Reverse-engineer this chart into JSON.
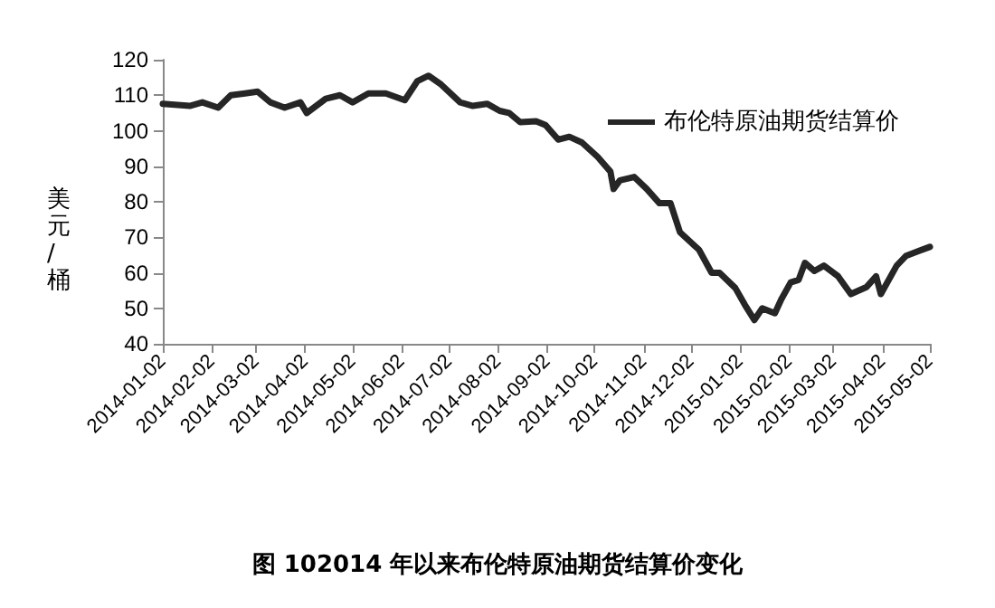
{
  "chart_data": {
    "type": "line",
    "title": "图 102014 年以来布伦特原油期货结算价变化",
    "ylabel": "美元/桶",
    "x": [
      "2014-01-02",
      "2014-01-19",
      "2014-01-27",
      "2014-02-06",
      "2014-02-14",
      "2014-02-23",
      "2014-03-03",
      "2014-03-11",
      "2014-03-20",
      "2014-03-30",
      "2014-04-03",
      "2014-04-15",
      "2014-04-24",
      "2014-05-02",
      "2014-05-12",
      "2014-05-23",
      "2014-06-04",
      "2014-06-12",
      "2014-06-19",
      "2014-06-27",
      "2014-07-09",
      "2014-07-17",
      "2014-07-26",
      "2014-08-03",
      "2014-08-09",
      "2014-08-16",
      "2014-08-26",
      "2014-09-01",
      "2014-09-09",
      "2014-09-16",
      "2014-09-24",
      "2014-10-04",
      "2014-10-12",
      "2014-10-14",
      "2014-10-18",
      "2014-10-27",
      "2014-11-04",
      "2014-11-12",
      "2014-11-19",
      "2014-11-25",
      "2014-12-07",
      "2014-12-15",
      "2014-12-20",
      "2014-12-30",
      "2015-01-05",
      "2015-01-11",
      "2015-01-16",
      "2015-01-24",
      "2015-01-28",
      "2015-02-03",
      "2015-02-08",
      "2015-02-12",
      "2015-02-18",
      "2015-02-24",
      "2015-03-05",
      "2015-03-13",
      "2015-03-23",
      "2015-03-29",
      "2015-04-01",
      "2015-04-11",
      "2015-04-17",
      "2015-05-02"
    ],
    "series": [
      {
        "name": "布伦特原油期货结算价",
        "color": "#262626",
        "values": [
          107.6,
          107,
          108,
          106.5,
          110,
          110.5,
          111,
          108,
          106.5,
          108,
          105,
          109,
          110,
          108,
          110.5,
          110.5,
          108.6,
          114,
          115.5,
          113,
          108,
          107,
          107.6,
          105.6,
          105,
          102.4,
          102.7,
          101.6,
          97.5,
          98.3,
          96.7,
          92.6,
          88.5,
          83.6,
          86,
          87,
          83.6,
          79.6,
          79.6,
          71.4,
          66.5,
          60,
          60,
          55.7,
          51,
          46.7,
          50,
          48.6,
          52.5,
          57.3,
          58,
          62.8,
          60.5,
          62,
          59,
          54,
          56,
          59,
          54,
          62,
          64.8,
          67.3
        ]
      }
    ],
    "xlim": [
      "2014-01-02",
      "2015-05-02"
    ],
    "xticks": [
      "2014-01-02",
      "2014-02-02",
      "2014-03-02",
      "2014-04-02",
      "2014-05-02",
      "2014-06-02",
      "2014-07-02",
      "2014-08-02",
      "2014-09-02",
      "2014-10-02",
      "2014-11-02",
      "2014-12-02",
      "2015-01-02",
      "2015-02-02",
      "2015-03-02",
      "2015-04-02",
      "2015-05-02"
    ],
    "ylim": [
      40,
      120
    ],
    "yticks": [
      40,
      50,
      60,
      70,
      80,
      90,
      100,
      110,
      120
    ],
    "grid": false,
    "legend": "top right",
    "marker": "none",
    "line_style": "solid"
  }
}
